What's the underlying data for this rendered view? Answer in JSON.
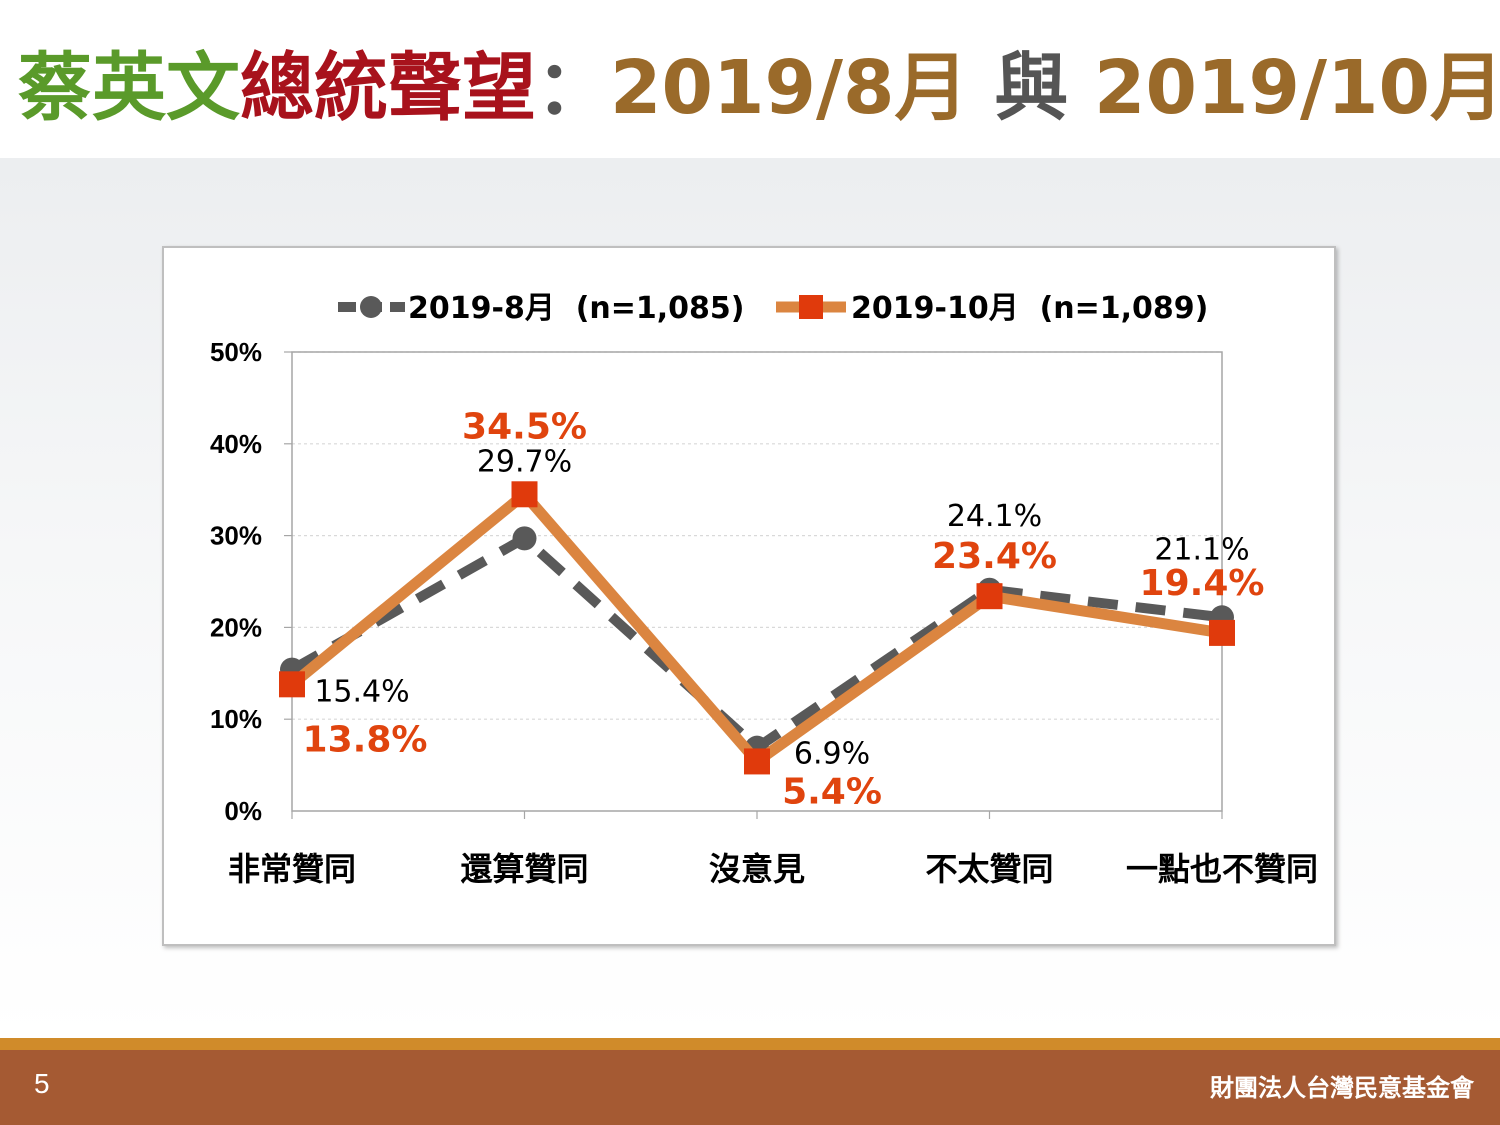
{
  "title": {
    "part1": "蔡英文",
    "part2": "總統聲望",
    "sep": "：",
    "part3": "2019/8月",
    "part4": " 與 ",
    "part5": "2019/10月"
  },
  "colors": {
    "series1": "#595959",
    "series2_line": "#db8540",
    "series2_marker": "#e03a0c",
    "label2": "#e0440e"
  },
  "chart_data": {
    "type": "line",
    "categories": [
      "非常贊同",
      "還算贊同",
      "沒意見",
      "不太贊同",
      "一點也不贊同"
    ],
    "series": [
      {
        "name": "2019-8月  (n=1,085)",
        "values": [
          15.4,
          29.7,
          6.9,
          24.1,
          21.1
        ],
        "labels": [
          "15.4%",
          "29.7%",
          "6.9%",
          "24.1%",
          "21.1%"
        ],
        "style": "dashed",
        "marker": "circle"
      },
      {
        "name": "2019-10月  (n=1,089)",
        "values": [
          13.8,
          34.5,
          5.4,
          23.4,
          19.4
        ],
        "labels": [
          "13.8%",
          "34.5%",
          "5.4%",
          "23.4%",
          "19.4%"
        ],
        "style": "solid",
        "marker": "square"
      }
    ],
    "yticks": [
      "0%",
      "10%",
      "20%",
      "30%",
      "40%",
      "50%"
    ],
    "ylim": [
      0,
      50
    ],
    "grid": true,
    "legend": "top"
  },
  "footer": {
    "page": "5",
    "org": "財團法人台灣民意基金會"
  }
}
